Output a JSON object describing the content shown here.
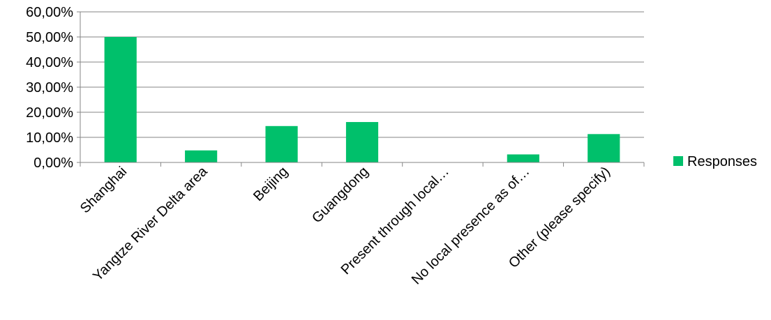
{
  "chart_data": {
    "type": "bar",
    "categories": [
      "Shanghai",
      "Yangtze River Delta area",
      "Beijing",
      "Guangdong",
      "Present through local…",
      "No local presence as of…",
      "Other (please specify)"
    ],
    "series": [
      {
        "name": "Responses",
        "values": [
          50.0,
          4.8,
          14.5,
          16.1,
          0.0,
          3.2,
          11.3
        ],
        "color": "#00c06b"
      }
    ],
    "ylim": [
      0,
      60
    ],
    "yticks": [
      "0,00%",
      "10,00%",
      "20,00%",
      "30,00%",
      "40,00%",
      "50,00%",
      "60,00%"
    ],
    "ytick_values": [
      0,
      10,
      20,
      30,
      40,
      50,
      60
    ],
    "grid": true,
    "legend_position": "right"
  }
}
